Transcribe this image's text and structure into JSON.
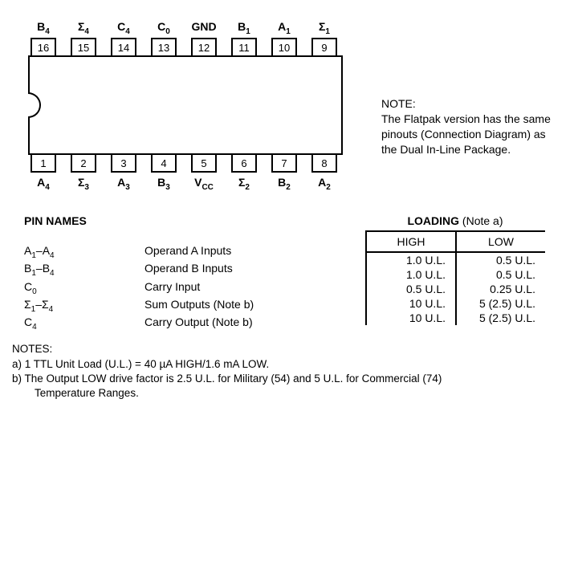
{
  "top_pins": [
    {
      "label": "B",
      "sub": "4",
      "num": "16"
    },
    {
      "label": "Σ",
      "sub": "4",
      "num": "15"
    },
    {
      "label": "C",
      "sub": "4",
      "num": "14"
    },
    {
      "label": "C",
      "sub": "0",
      "num": "13"
    },
    {
      "label": "GND",
      "sub": "",
      "num": "12"
    },
    {
      "label": "B",
      "sub": "1",
      "num": "11"
    },
    {
      "label": "A",
      "sub": "1",
      "num": "10"
    },
    {
      "label": "Σ",
      "sub": "1",
      "num": "9"
    }
  ],
  "bottom_pins": [
    {
      "label": "A",
      "sub": "4",
      "num": "1"
    },
    {
      "label": "Σ",
      "sub": "3",
      "num": "2"
    },
    {
      "label": "A",
      "sub": "3",
      "num": "3"
    },
    {
      "label": "B",
      "sub": "3",
      "num": "4"
    },
    {
      "label": "V",
      "sub": "CC",
      "num": "5"
    },
    {
      "label": "Σ",
      "sub": "2",
      "num": "6"
    },
    {
      "label": "B",
      "sub": "2",
      "num": "7"
    },
    {
      "label": "A",
      "sub": "2",
      "num": "8"
    }
  ],
  "side_note_title": "NOTE:",
  "side_note_text": "The Flatpak version has the same pinouts (Connection Diagram) as the Dual In-Line Package.",
  "pin_names_title": "PIN NAMES",
  "pin_descriptions": [
    {
      "sym": "A",
      "sub1": "1",
      "dash": "–A",
      "sub2": "4",
      "desc": "Operand A Inputs"
    },
    {
      "sym": "B",
      "sub1": "1",
      "dash": "–B",
      "sub2": "4",
      "desc": "Operand B Inputs"
    },
    {
      "sym": "C",
      "sub1": "0",
      "dash": "",
      "sub2": "",
      "desc": "Carry Input"
    },
    {
      "sym": "Σ",
      "sub1": "1",
      "dash": "–Σ",
      "sub2": "4",
      "desc": "Sum Outputs (Note b)"
    },
    {
      "sym": "C",
      "sub1": "4",
      "dash": "",
      "sub2": "",
      "desc": "Carry Output (Note b)"
    }
  ],
  "loading_title_bold": "LOADING",
  "loading_title_note": " (Note a)",
  "loading_headers": [
    "HIGH",
    "LOW"
  ],
  "loading_rows": [
    {
      "high": "1.0 U.L.",
      "low": "0.5 U.L."
    },
    {
      "high": "1.0 U.L.",
      "low": "0.5 U.L."
    },
    {
      "high": "0.5 U.L.",
      "low": "0.25 U.L."
    },
    {
      "high": "10 U.L.",
      "low": "5 (2.5) U.L."
    },
    {
      "high": "10 U.L.",
      "low": "5 (2.5) U.L."
    }
  ],
  "notes_title": "NOTES:",
  "note_a": "a) 1 TTL Unit Load (U.L.) = 40 µA HIGH/1.6 mA LOW.",
  "note_b_line1": "b) The  Output  LOW  drive  factor  is  2.5  U.L.  for  Military  (54)  and  5  U.L.  for  Commercial  (74)",
  "note_b_line2": "Temperature Ranges."
}
